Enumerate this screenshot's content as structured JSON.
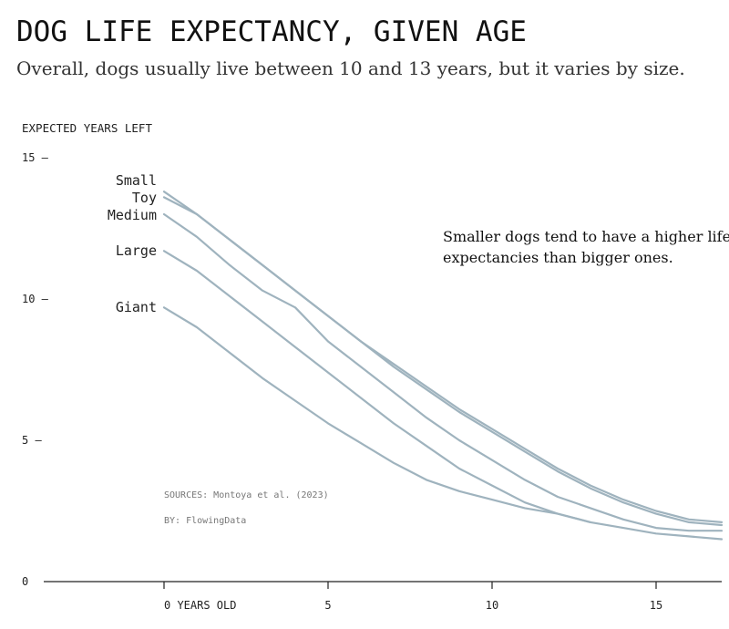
{
  "chart_data": {
    "type": "line",
    "title": "DOG LIFE EXPECTANCY, GIVEN AGE",
    "subtitle": "Overall, dogs usually live between 10 and 13 years, but it varies by size.",
    "ylabel": "EXPECTED YEARS LEFT",
    "xlabel": "",
    "xlim": [
      -4.5,
      17
    ],
    "ylim": [
      0,
      15
    ],
    "x_ticks": [
      {
        "value": 0,
        "label": "0 YEARS OLD"
      },
      {
        "value": 5,
        "label": "5"
      },
      {
        "value": 10,
        "label": "10"
      },
      {
        "value": 15,
        "label": "15"
      }
    ],
    "y_ticks": [
      {
        "value": 0,
        "label": "0"
      },
      {
        "value": 5,
        "label": "5 —"
      },
      {
        "value": 10,
        "label": "10 —"
      },
      {
        "value": 15,
        "label": "15 —"
      }
    ],
    "line_color": "#9fb3be",
    "series": [
      {
        "name": "Small",
        "x": [
          0,
          1,
          2,
          3,
          4,
          5,
          6,
          7,
          8,
          9,
          10,
          11,
          12,
          13,
          14,
          15,
          16,
          17
        ],
        "y": [
          13.8,
          13.0,
          12.1,
          11.2,
          10.3,
          9.4,
          8.5,
          7.7,
          6.9,
          6.1,
          5.4,
          4.7,
          4.0,
          3.4,
          2.9,
          2.5,
          2.2,
          2.1
        ]
      },
      {
        "name": "Toy",
        "x": [
          0,
          1,
          2,
          3,
          4,
          5,
          6,
          7,
          8,
          9,
          10,
          11,
          12,
          13,
          14,
          15,
          16,
          17
        ],
        "y": [
          13.6,
          13.0,
          12.1,
          11.2,
          10.3,
          9.4,
          8.5,
          7.6,
          6.8,
          6.0,
          5.3,
          4.6,
          3.9,
          3.3,
          2.8,
          2.4,
          2.1,
          2.0
        ]
      },
      {
        "name": "Medium",
        "x": [
          0,
          1,
          2,
          3,
          4,
          5,
          6,
          7,
          8,
          9,
          10,
          11,
          12,
          13,
          14,
          15,
          16,
          17
        ],
        "y": [
          13.0,
          12.2,
          11.2,
          10.3,
          9.7,
          8.5,
          7.6,
          6.7,
          5.8,
          5.0,
          4.3,
          3.6,
          3.0,
          2.6,
          2.2,
          1.9,
          1.8,
          1.8
        ]
      },
      {
        "name": "Large",
        "x": [
          0,
          1,
          2,
          3,
          4,
          5,
          6,
          7,
          8,
          9,
          10,
          11,
          12,
          13,
          14,
          15,
          16,
          17
        ],
        "y": [
          11.7,
          11.0,
          10.1,
          9.2,
          8.3,
          7.4,
          6.5,
          5.6,
          4.8,
          4.0,
          3.4,
          2.8,
          2.4,
          2.1,
          1.9,
          1.7,
          1.6,
          1.5
        ]
      },
      {
        "name": "Giant",
        "x": [
          0,
          1,
          2,
          3,
          4,
          5,
          6,
          7,
          8,
          9,
          10,
          11,
          12,
          13
        ],
        "y": [
          9.7,
          9.0,
          8.1,
          7.2,
          6.4,
          5.6,
          4.9,
          4.2,
          3.6,
          3.2,
          2.9,
          2.6,
          2.4,
          2.1
        ]
      }
    ],
    "annotations": [
      {
        "text_lines": [
          "Smaller dogs tend to have a higher life",
          "expectancies than bigger ones."
        ]
      }
    ],
    "sources": "SOURCES: Montoya et al. (2023)",
    "byline": "BY: FlowingData",
    "legend": "direct labels at line start",
    "grid": false
  }
}
